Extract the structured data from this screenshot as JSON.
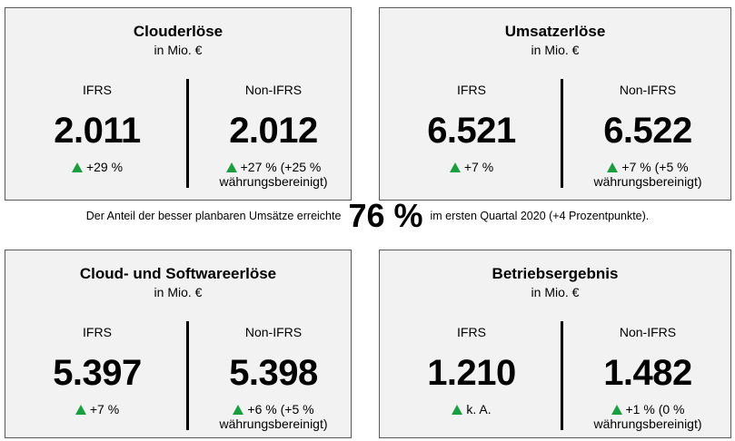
{
  "cards": [
    {
      "title": "Clouderlöse",
      "subtitle": "in Mio. €",
      "ifrs": {
        "label": "IFRS",
        "value": "2.011",
        "change_line1": "+29 %",
        "change_line2": ""
      },
      "non_ifrs": {
        "label": "Non-IFRS",
        "value": "2.012",
        "change_line1": "+27 % (+25 %",
        "change_line2": "währungsbereinigt)"
      }
    },
    {
      "title": "Umsatzerlöse",
      "subtitle": "in Mio. €",
      "ifrs": {
        "label": "IFRS",
        "value": "6.521",
        "change_line1": "+7 %",
        "change_line2": ""
      },
      "non_ifrs": {
        "label": "Non-IFRS",
        "value": "6.522",
        "change_line1": "+7 % (+5 %",
        "change_line2": "währungsbereinigt)"
      }
    },
    {
      "title": "Cloud- und Softwareerlöse",
      "subtitle": "in Mio. €",
      "ifrs": {
        "label": "IFRS",
        "value": "5.397",
        "change_line1": "+7 %",
        "change_line2": ""
      },
      "non_ifrs": {
        "label": "Non-IFRS",
        "value": "5.398",
        "change_line1": "+6 % (+5 %",
        "change_line2": "währungsbereinigt)"
      }
    },
    {
      "title": "Betriebsergebnis",
      "subtitle": "in Mio. €",
      "ifrs": {
        "label": "IFRS",
        "value": "1.210",
        "change_line1": "k. A.",
        "change_line2": ""
      },
      "non_ifrs": {
        "label": "Non-IFRS",
        "value": "1.482",
        "change_line1": "+1 % (0 %",
        "change_line2": "währungsbereinigt)"
      }
    }
  ],
  "middle": {
    "prefix": "Der Anteil der besser planbaren Umsätze erreichte",
    "highlight": "76 %",
    "suffix": "im ersten Quartal 2020 (+4 Prozentpunkte)."
  },
  "colors": {
    "up_arrow": "#1a9e3f",
    "card_bg": "#f2f2f2",
    "card_border": "#5a5a5a"
  }
}
